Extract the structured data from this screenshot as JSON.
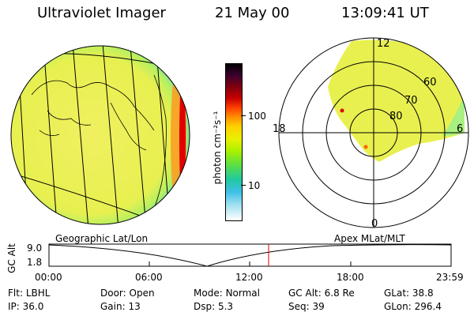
{
  "header": {
    "instrument": "Ultraviolet Imager",
    "date": "21 May 00",
    "time": "13:09:41 UT"
  },
  "colorbar": {
    "unit": "photon cm⁻²s⁻¹",
    "ticks": [
      "100",
      "10"
    ],
    "colors": [
      "#000000",
      "#3a0030",
      "#7a0010",
      "#c80000",
      "#ff4000",
      "#ff9000",
      "#ffd000",
      "#e8f000",
      "#a8f000",
      "#60e040",
      "#20c8a0",
      "#40c0e8",
      "#a0e0f0",
      "#ffffff"
    ]
  },
  "polar": {
    "mlt_labels": {
      "top": "12",
      "left": "18",
      "right": "6",
      "bottom": "0"
    },
    "lat_labels": [
      "60",
      "70",
      "80"
    ]
  },
  "orbit_plot": {
    "left_title": "Geographic Lat/Lon",
    "right_title": "Apex MLat/MLT",
    "ylabel": "GC Alt",
    "y_ticks": [
      "9.0",
      "1.8"
    ],
    "x_ticks": [
      "00:00",
      "06:00",
      "12:00",
      "18:00",
      "23:59"
    ],
    "marker_color": "#e00000"
  },
  "info": {
    "row1": [
      {
        "label": "Flt:",
        "value": "LBHL"
      },
      {
        "label": "Door:",
        "value": "Open"
      },
      {
        "label": "Mode:",
        "value": "Normal"
      },
      {
        "label": "GC Alt:",
        "value": "6.8 Re"
      },
      {
        "label": "GLat:",
        "value": "38.8"
      }
    ],
    "row2": [
      {
        "label": "IP:",
        "value": "36.0"
      },
      {
        "label": "Gain:",
        "value": "13"
      },
      {
        "label": "Dsp:",
        "value": "5.3"
      },
      {
        "label": "Seq:",
        "value": "39"
      },
      {
        "label": "GLon:",
        "value": "296.4"
      }
    ]
  }
}
